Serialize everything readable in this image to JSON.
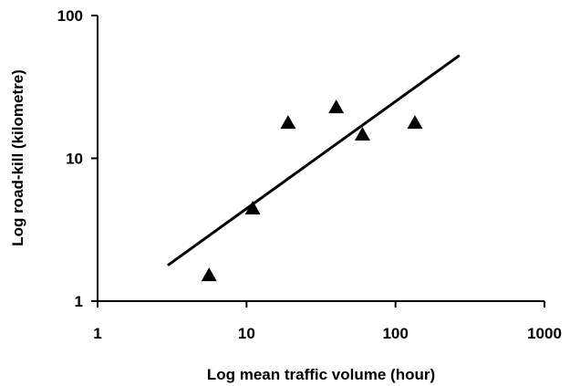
{
  "chart_data": {
    "type": "scatter",
    "xscale": "log",
    "yscale": "log",
    "xlabel": "Log mean traffic volume (hour)",
    "ylabel": "Log road-kill (kilometre)",
    "xlim": [
      1,
      1000
    ],
    "ylim": [
      1,
      100
    ],
    "x_ticks": [
      1,
      10,
      100,
      1000
    ],
    "x_tick_labels": [
      "1",
      "10",
      "100",
      "1000"
    ],
    "y_ticks": [
      1,
      10,
      100
    ],
    "y_tick_labels": [
      "1",
      "10",
      "100"
    ],
    "grid": false,
    "legend": "none",
    "series": [
      {
        "marker": "triangle",
        "color": "#000000",
        "points": [
          {
            "x": 5.6,
            "y": 1.5
          },
          {
            "x": 11,
            "y": 4.4
          },
          {
            "x": 19,
            "y": 17.5
          },
          {
            "x": 40,
            "y": 22.5
          },
          {
            "x": 60,
            "y": 14.5
          },
          {
            "x": 135,
            "y": 17.5
          }
        ]
      }
    ],
    "trendline": {
      "color": "#000000",
      "points": [
        {
          "x": 3,
          "y": 1.8
        },
        {
          "x": 265,
          "y": 52
        }
      ]
    }
  }
}
